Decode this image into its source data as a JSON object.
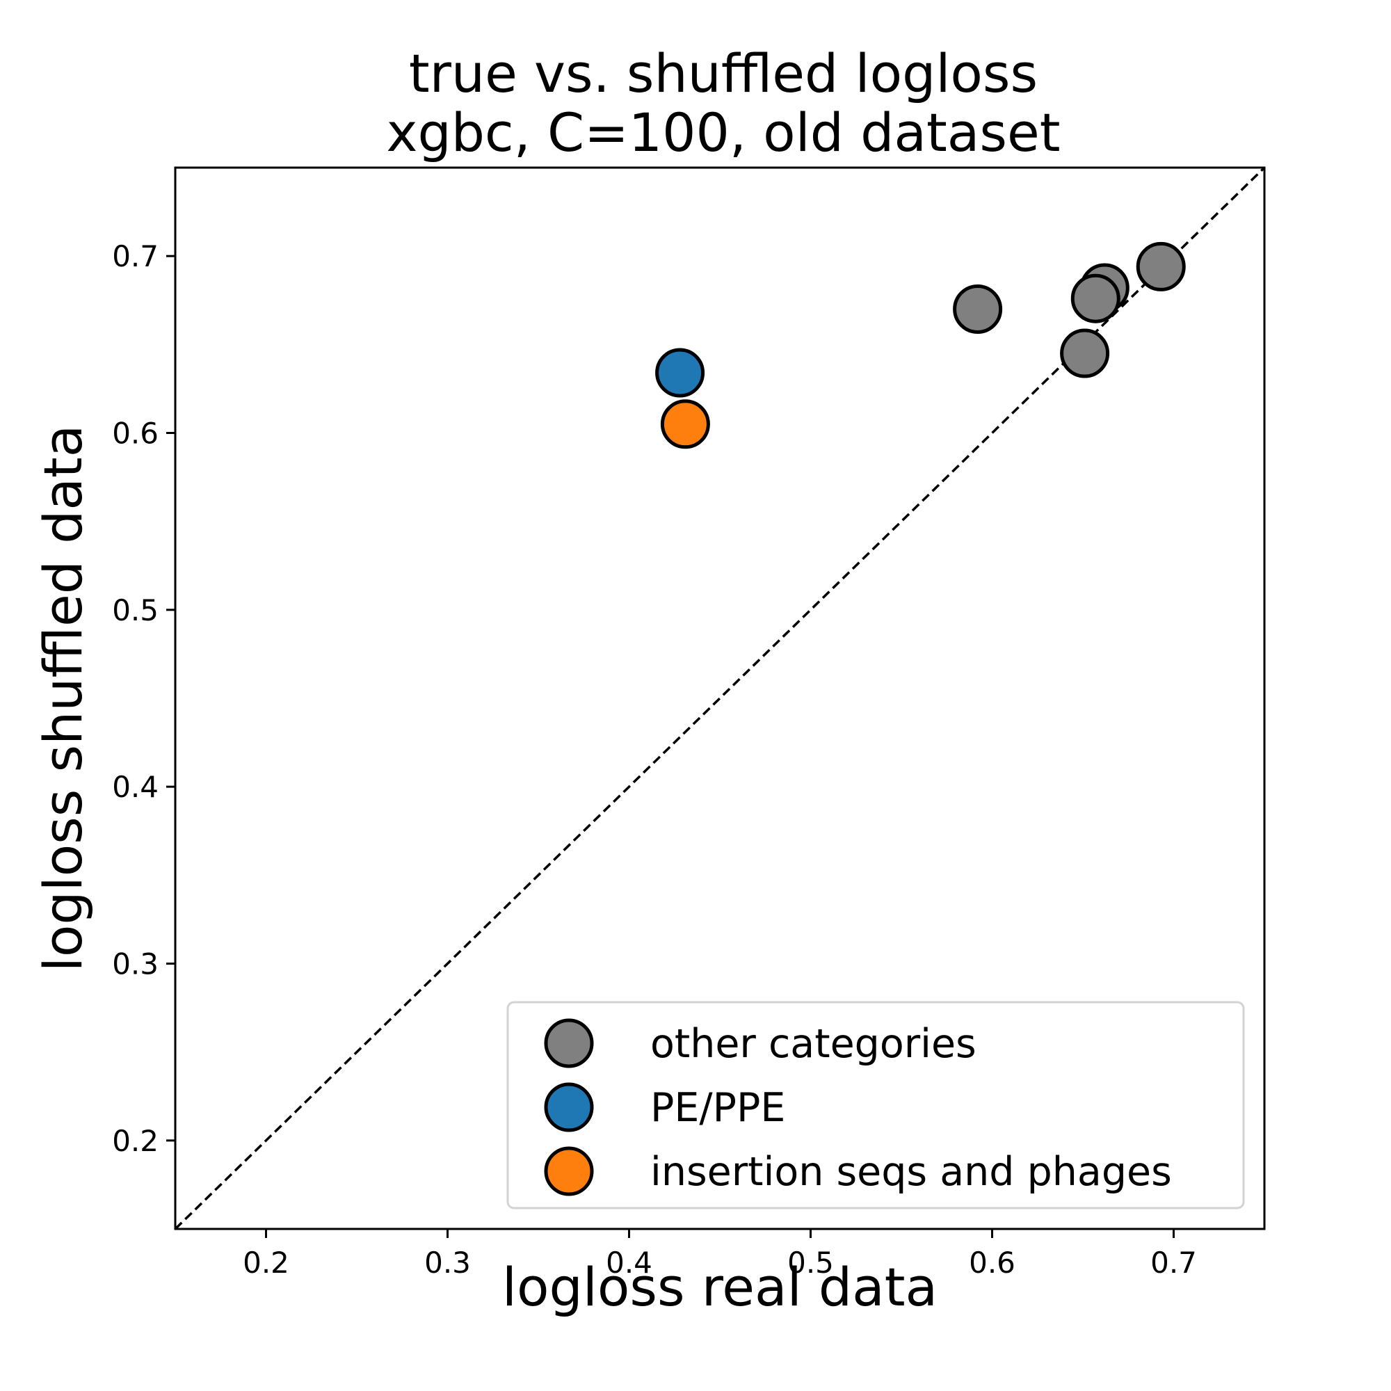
{
  "chart_data": {
    "type": "scatter",
    "title": [
      "true vs. shuffled logloss",
      "xgbc, C=100, old dataset"
    ],
    "xlabel": "logloss real data",
    "ylabel": "logloss shuffled data",
    "xlim": [
      0.15,
      0.75
    ],
    "ylim": [
      0.15,
      0.75
    ],
    "xticks": [
      0.2,
      0.3,
      0.4,
      0.5,
      0.6,
      0.7
    ],
    "yticks": [
      0.2,
      0.3,
      0.4,
      0.5,
      0.6,
      0.7
    ],
    "xtick_labels": [
      "0.2",
      "0.3",
      "0.4",
      "0.5",
      "0.6",
      "0.7"
    ],
    "ytick_labels": [
      "0.2",
      "0.3",
      "0.4",
      "0.5",
      "0.6",
      "0.7"
    ],
    "reference_line": {
      "style": "dashed",
      "color": "#000000",
      "from": [
        0.15,
        0.15
      ],
      "to": [
        0.75,
        0.75
      ]
    },
    "grid": false,
    "legend_placement": "lower-right",
    "series": [
      {
        "name": "other categories",
        "color": "#808080",
        "points": [
          {
            "x": 0.592,
            "y": 0.67
          },
          {
            "x": 0.651,
            "y": 0.645
          },
          {
            "x": 0.662,
            "y": 0.682
          },
          {
            "x": 0.657,
            "y": 0.676
          },
          {
            "x": 0.693,
            "y": 0.694
          }
        ]
      },
      {
        "name": "PE/PPE",
        "color": "#1f77b4",
        "points": [
          {
            "x": 0.428,
            "y": 0.634
          }
        ]
      },
      {
        "name": "insertion seqs and phages",
        "color": "#ff7f0e",
        "points": [
          {
            "x": 0.431,
            "y": 0.605
          }
        ]
      }
    ]
  }
}
